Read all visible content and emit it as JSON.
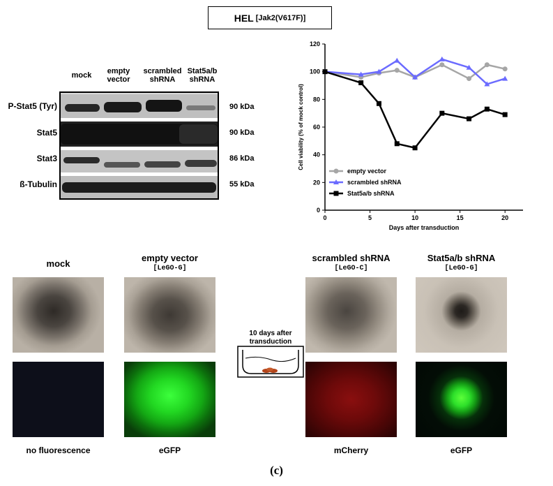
{
  "header": {
    "cell_line": "HEL",
    "mutation": "[Jak2(V617F)]"
  },
  "western_blot": {
    "lanes": [
      "mock",
      "empty vector",
      "scrambled shRNA",
      "Stat5a/b shRNA"
    ],
    "rows": [
      {
        "label": "P-Stat5 (Tyr)",
        "kda": "90 kDa"
      },
      {
        "label": "Stat5",
        "kda": "90 kDa"
      },
      {
        "label": "Stat3",
        "kda": "86 kDa"
      },
      {
        "label": "ß-Tubulin",
        "kda": "55 kDa"
      }
    ]
  },
  "chart_data": {
    "type": "line",
    "title": "",
    "xlabel": "Days after transduction",
    "ylabel": "Cell viability (% of mock control)",
    "xlim": [
      0,
      22
    ],
    "ylim": [
      0,
      120
    ],
    "xticks": [
      0,
      5,
      10,
      15,
      20
    ],
    "yticks": [
      0,
      20,
      40,
      60,
      80,
      100,
      120
    ],
    "legend_position": "bottom-left",
    "series": [
      {
        "name": "empty vector",
        "color": "#a6a6a6",
        "marker": "circle",
        "x": [
          0,
          4,
          6,
          8,
          10,
          13,
          16,
          18,
          20
        ],
        "y": [
          100,
          96,
          99,
          101,
          96,
          105,
          95,
          105,
          102
        ]
      },
      {
        "name": "scrambled shRNA",
        "color": "#6b6bff",
        "marker": "triangle",
        "x": [
          0,
          4,
          6,
          8,
          10,
          13,
          16,
          18,
          20
        ],
        "y": [
          100,
          98,
          100,
          108,
          96,
          109,
          103,
          91,
          95
        ]
      },
      {
        "name": "Stat5a/b shRNA",
        "color": "#000000",
        "marker": "square",
        "x": [
          0,
          4,
          6,
          8,
          10,
          13,
          16,
          18,
          20
        ],
        "y": [
          100,
          92,
          77,
          48,
          45,
          70,
          66,
          73,
          69
        ]
      }
    ]
  },
  "colonies": {
    "conditions": [
      {
        "name": "mock",
        "vector": "",
        "fluorescence": "no fluorescence"
      },
      {
        "name": "empty vector",
        "vector": "[LeGO-G]",
        "fluorescence": "eGFP"
      },
      {
        "name": "scrambled shRNA",
        "vector": "[LeGO-C]",
        "fluorescence": "mCherry"
      },
      {
        "name": "Stat5a/b shRNA",
        "vector": "[LeGO-G]",
        "fluorescence": "eGFP"
      }
    ],
    "incubation_label": "10 days after transduction"
  },
  "panel_label": "(c)"
}
